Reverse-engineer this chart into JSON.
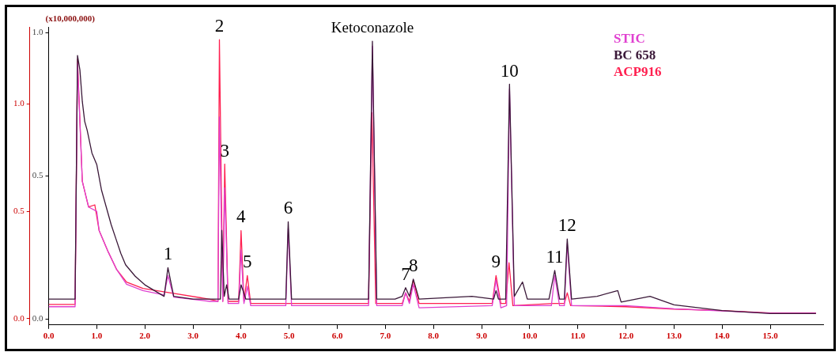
{
  "chart_data": {
    "type": "line",
    "ylabel": "(x10,000,000)",
    "xlim": [
      0,
      16.1
    ],
    "xticks": [
      {
        "value": 0,
        "label": "0.0"
      },
      {
        "value": 1,
        "label": "1.0"
      },
      {
        "value": 2,
        "label": "2.0"
      },
      {
        "value": 3,
        "label": "3.0"
      },
      {
        "value": 4,
        "label": "4.0"
      },
      {
        "value": 5,
        "label": "5.0"
      },
      {
        "value": 6,
        "label": "6.0"
      },
      {
        "value": 7,
        "label": "7.0"
      },
      {
        "value": 8,
        "label": "8.0"
      },
      {
        "value": 9,
        "label": "9.0"
      },
      {
        "value": 10,
        "label": "10.0"
      },
      {
        "value": 11,
        "label": "11.0"
      },
      {
        "value": 12,
        "label": "12.0"
      },
      {
        "value": 13,
        "label": "13.0"
      },
      {
        "value": 14,
        "label": "14.0"
      },
      {
        "value": 15,
        "label": "15.0"
      }
    ],
    "ylim": [
      -0.02,
      1.02
    ],
    "yticks": [
      {
        "value": 0,
        "label": "0.0"
      },
      {
        "value": 0.5,
        "label": "0.5"
      },
      {
        "value": 1,
        "label": "1.0"
      }
    ],
    "y2lim": [
      -0.03,
      1.36
    ],
    "y2ticks": [
      {
        "value": 0,
        "label": "0.0"
      },
      {
        "value": 0.5,
        "label": "0.5"
      },
      {
        "value": 1,
        "label": "1.0"
      }
    ],
    "grid": false,
    "legend": "top right",
    "marker": "none",
    "series": [
      {
        "name": "STIC",
        "color": "#e040d0",
        "axis": "y2",
        "x": [
          0,
          0.55,
          0.6,
          0.7,
          0.83,
          1.0,
          1.05,
          1.24,
          1.41,
          1.62,
          1.96,
          2.4,
          2.48,
          2.6,
          3.35,
          3.52,
          3.55,
          3.62,
          3.66,
          3.73,
          3.95,
          4.0,
          4.06,
          4.13,
          4.2,
          4.93,
          4.98,
          5.05,
          6.65,
          6.73,
          6.82,
          7.35,
          7.42,
          7.5,
          7.58,
          7.7,
          9.22,
          9.3,
          9.4,
          9.52,
          9.58,
          9.68,
          10.45,
          10.52,
          10.62,
          10.72,
          10.78,
          10.87,
          12,
          13,
          14,
          15,
          15.95
        ],
        "values": [
          0.055,
          0.055,
          1.19,
          0.64,
          0.52,
          0.5,
          0.41,
          0.31,
          0.23,
          0.16,
          0.13,
          0.11,
          0.2,
          0.1,
          0.08,
          0.08,
          0.94,
          0.08,
          0.61,
          0.07,
          0.07,
          0.32,
          0.07,
          0.15,
          0.06,
          0.06,
          0.42,
          0.06,
          0.06,
          1.27,
          0.06,
          0.06,
          0.12,
          0.07,
          0.16,
          0.05,
          0.06,
          0.18,
          0.05,
          0.06,
          1.07,
          0.06,
          0.06,
          0.2,
          0.06,
          0.06,
          0.35,
          0.06,
          0.06,
          0.045,
          0.035,
          0.025,
          0.025
        ]
      },
      {
        "name": "BC 658",
        "color": "#3a1838",
        "axis": "y",
        "x": [
          0,
          0.55,
          0.6,
          0.65,
          0.7,
          0.75,
          0.8,
          0.9,
          1.0,
          1.1,
          1.2,
          1.3,
          1.4,
          1.5,
          1.6,
          1.8,
          2.0,
          2.2,
          2.4,
          2.48,
          2.6,
          3.0,
          3.5,
          3.57,
          3.6,
          3.65,
          3.7,
          3.75,
          3.95,
          4.0,
          4.1,
          4.5,
          4.93,
          4.98,
          5.05,
          6.0,
          6.65,
          6.73,
          6.82,
          7.2,
          7.35,
          7.42,
          7.5,
          7.58,
          7.7,
          8.8,
          9.25,
          9.3,
          9.35,
          9.5,
          9.58,
          9.68,
          9.85,
          9.95,
          10.4,
          10.52,
          10.62,
          10.72,
          10.78,
          10.87,
          11.4,
          11.83,
          11.9,
          12.5,
          13.0,
          14.0,
          15.0,
          15.95
        ],
        "values": [
          0.07,
          0.07,
          0.92,
          0.87,
          0.76,
          0.69,
          0.66,
          0.58,
          0.54,
          0.45,
          0.39,
          0.33,
          0.28,
          0.23,
          0.19,
          0.15,
          0.12,
          0.1,
          0.08,
          0.18,
          0.08,
          0.07,
          0.07,
          0.07,
          0.31,
          0.08,
          0.12,
          0.07,
          0.07,
          0.12,
          0.07,
          0.07,
          0.07,
          0.34,
          0.07,
          0.07,
          0.07,
          0.97,
          0.07,
          0.07,
          0.08,
          0.11,
          0.08,
          0.14,
          0.07,
          0.08,
          0.07,
          0.1,
          0.07,
          0.07,
          0.82,
          0.08,
          0.13,
          0.07,
          0.07,
          0.17,
          0.07,
          0.07,
          0.28,
          0.07,
          0.08,
          0.1,
          0.06,
          0.08,
          0.05,
          0.03,
          0.02,
          0.02
        ]
      },
      {
        "name": "ACP916",
        "color": "#ff2050",
        "axis": "y2",
        "x": [
          0,
          0.55,
          0.6,
          0.7,
          0.83,
          0.96,
          1.05,
          1.24,
          1.41,
          1.62,
          1.96,
          2.52,
          3.35,
          3.52,
          3.55,
          3.62,
          3.66,
          3.73,
          3.95,
          4.0,
          4.06,
          4.13,
          4.2,
          5.0,
          6.65,
          6.72,
          6.8,
          7.35,
          7.42,
          7.5,
          7.58,
          7.7,
          9.22,
          9.3,
          9.4,
          9.5,
          9.57,
          9.65,
          10.5,
          10.72,
          10.78,
          10.85,
          12,
          13,
          14,
          15,
          15.95
        ],
        "values": [
          0.066,
          0.066,
          1.21,
          0.64,
          0.52,
          0.53,
          0.41,
          0.31,
          0.23,
          0.17,
          0.14,
          0.12,
          0.09,
          0.08,
          1.3,
          0.08,
          0.72,
          0.08,
          0.08,
          0.41,
          0.08,
          0.2,
          0.07,
          0.07,
          0.07,
          0.96,
          0.07,
          0.07,
          0.12,
          0.08,
          0.18,
          0.07,
          0.07,
          0.2,
          0.07,
          0.07,
          0.26,
          0.06,
          0.07,
          0.07,
          0.12,
          0.06,
          0.055,
          0.044,
          0.037,
          0.026,
          0.026
        ]
      }
    ],
    "annotations": [
      {
        "text": "1",
        "x": 2.48,
        "y": 0.18
      },
      {
        "text": "2",
        "x": 3.55,
        "y": 0.97
      },
      {
        "text": "3",
        "x": 3.66,
        "y": 0.54
      },
      {
        "text": "4",
        "x": 4.0,
        "y": 0.31
      },
      {
        "text": "5",
        "x": 4.13,
        "y": 0.15
      },
      {
        "text": "6",
        "x": 4.98,
        "y": 0.34
      },
      {
        "text": "Ketoconazole",
        "x": 6.73,
        "y": 0.97
      },
      {
        "text": "7",
        "x": 7.42,
        "y": 0.11
      },
      {
        "text": "8",
        "x": 7.58,
        "y": 0.14
      },
      {
        "text": "9",
        "x": 9.3,
        "y": 0.1
      },
      {
        "text": "10",
        "x": 9.58,
        "y": 0.82
      },
      {
        "text": "11",
        "x": 10.52,
        "y": 0.17
      },
      {
        "text": "12",
        "x": 10.78,
        "y": 0.28
      }
    ]
  }
}
